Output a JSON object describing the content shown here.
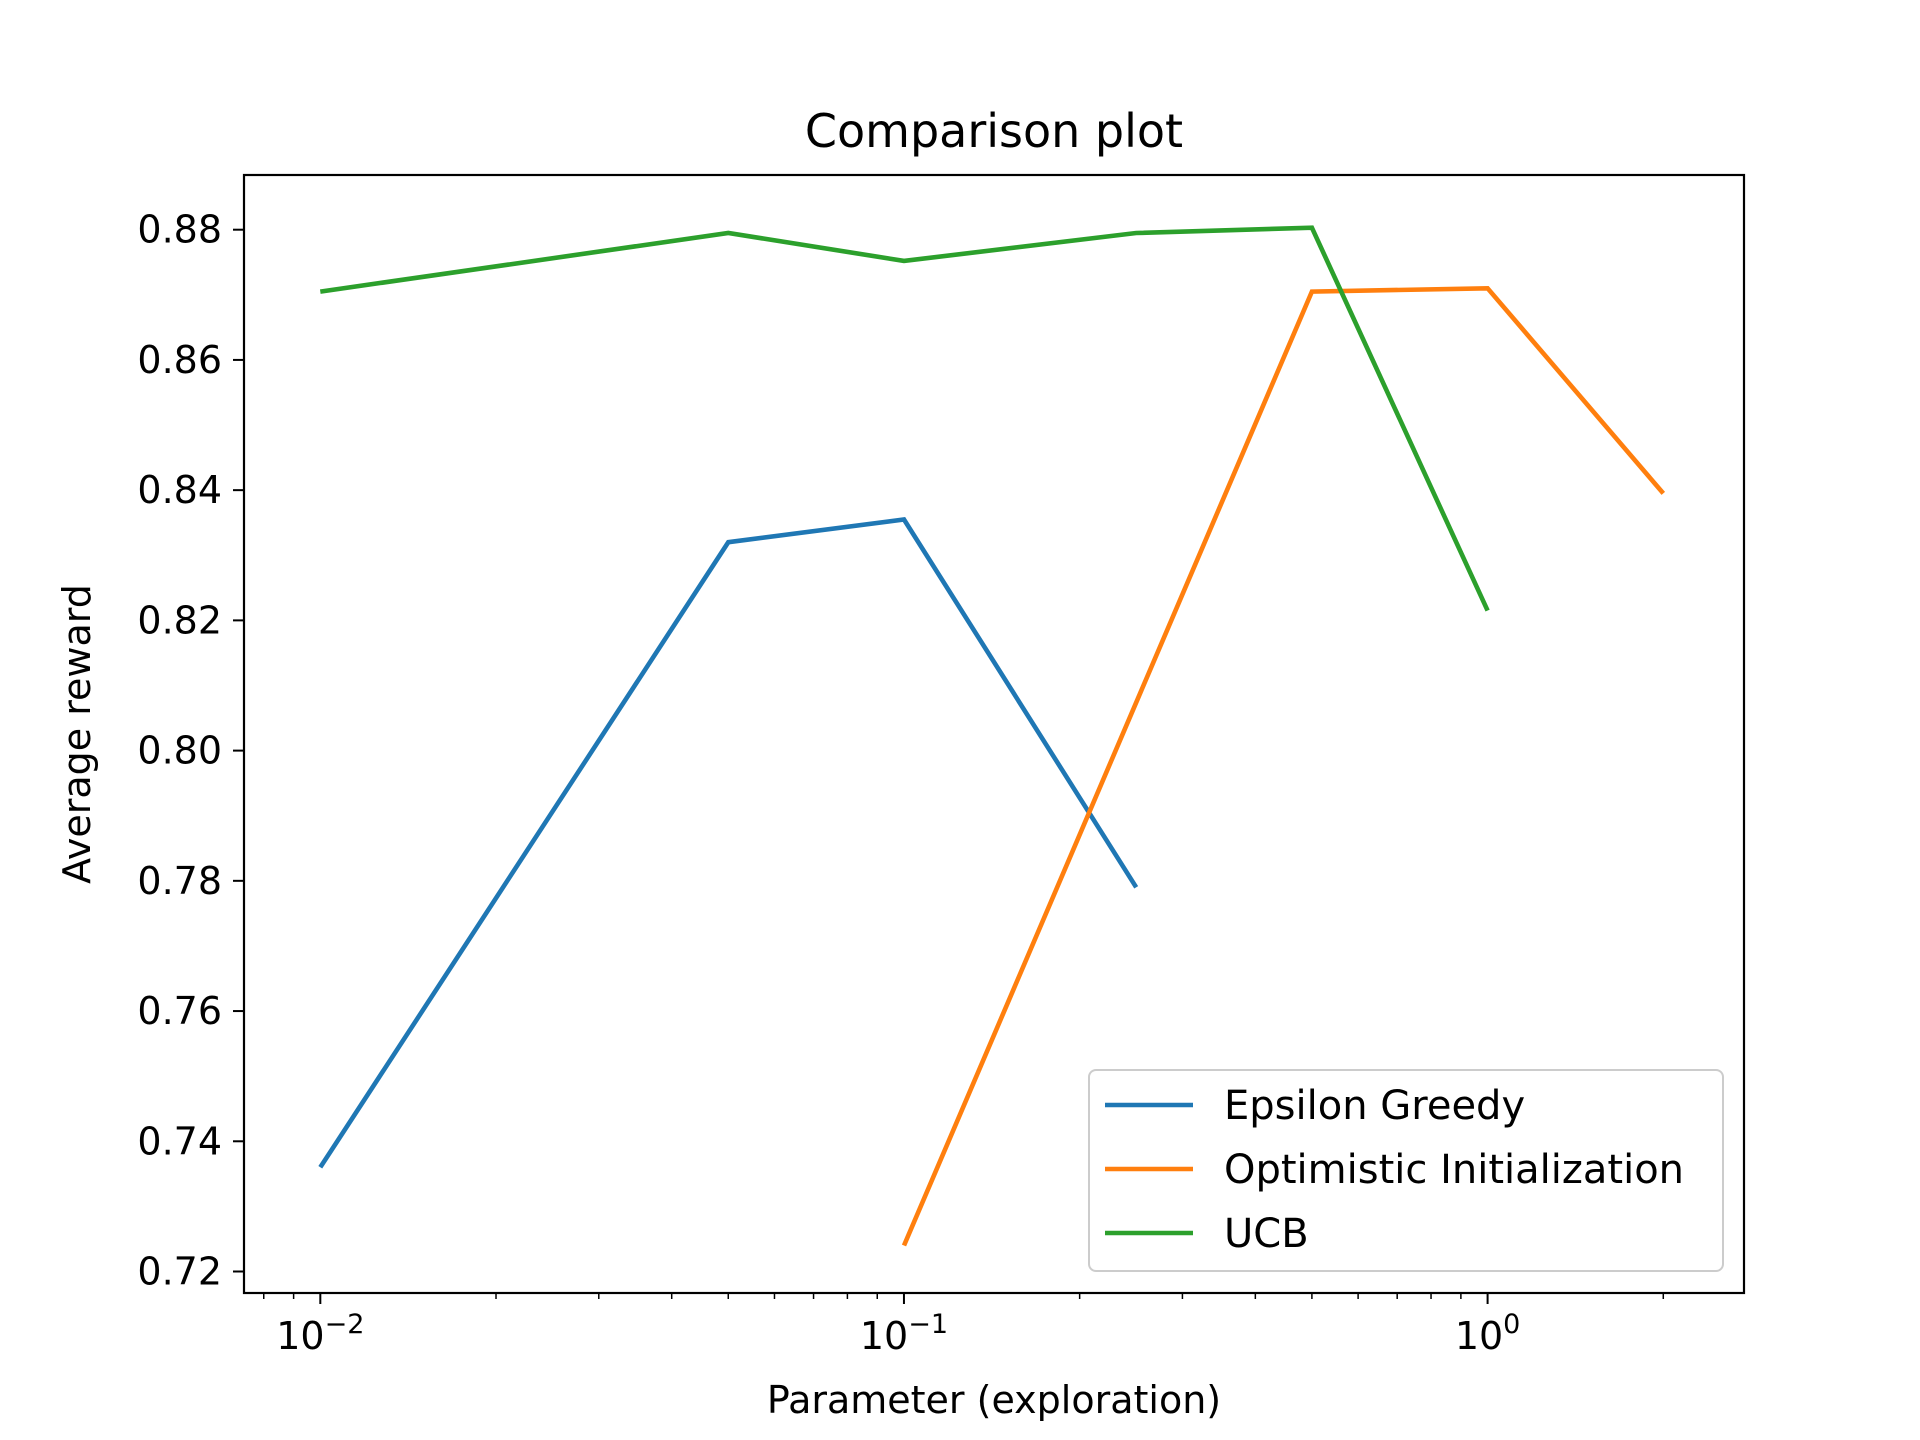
{
  "chart_data": {
    "type": "line",
    "title": "Comparison plot",
    "xlabel": "Parameter (exploration)",
    "ylabel": "Average reward",
    "xscale": "log",
    "xlim": [
      0.0074,
      2.75
    ],
    "ylim": [
      0.7167,
      0.8884
    ],
    "xticks": [
      {
        "value": 0.01,
        "base": "10",
        "exp": "−2"
      },
      {
        "value": 0.1,
        "base": "10",
        "exp": "−1"
      },
      {
        "value": 1,
        "base": "10",
        "exp": "0"
      }
    ],
    "yticks": [
      0.72,
      0.74,
      0.76,
      0.78,
      0.8,
      0.82,
      0.84,
      0.86,
      0.88
    ],
    "ytick_labels": [
      "0.72",
      "0.74",
      "0.76",
      "0.78",
      "0.80",
      "0.82",
      "0.84",
      "0.86",
      "0.88"
    ],
    "grid": false,
    "legend_position": "lower-right",
    "series": [
      {
        "name": "Epsilon Greedy",
        "color": "#1f77b4",
        "x": [
          0.01,
          0.05,
          0.1,
          0.25
        ],
        "y": [
          0.736,
          0.832,
          0.8355,
          0.779
        ]
      },
      {
        "name": "Optimistic Initialization",
        "color": "#ff7f0e",
        "x": [
          0.1,
          0.5,
          1,
          2
        ],
        "y": [
          0.724,
          0.8705,
          0.871,
          0.8395
        ]
      },
      {
        "name": "UCB",
        "color": "#2ca02c",
        "x": [
          0.01,
          0.05,
          0.1,
          0.25,
          0.5,
          1
        ],
        "y": [
          0.8705,
          0.8795,
          0.8752,
          0.8795,
          0.8803,
          0.8215
        ]
      }
    ]
  }
}
